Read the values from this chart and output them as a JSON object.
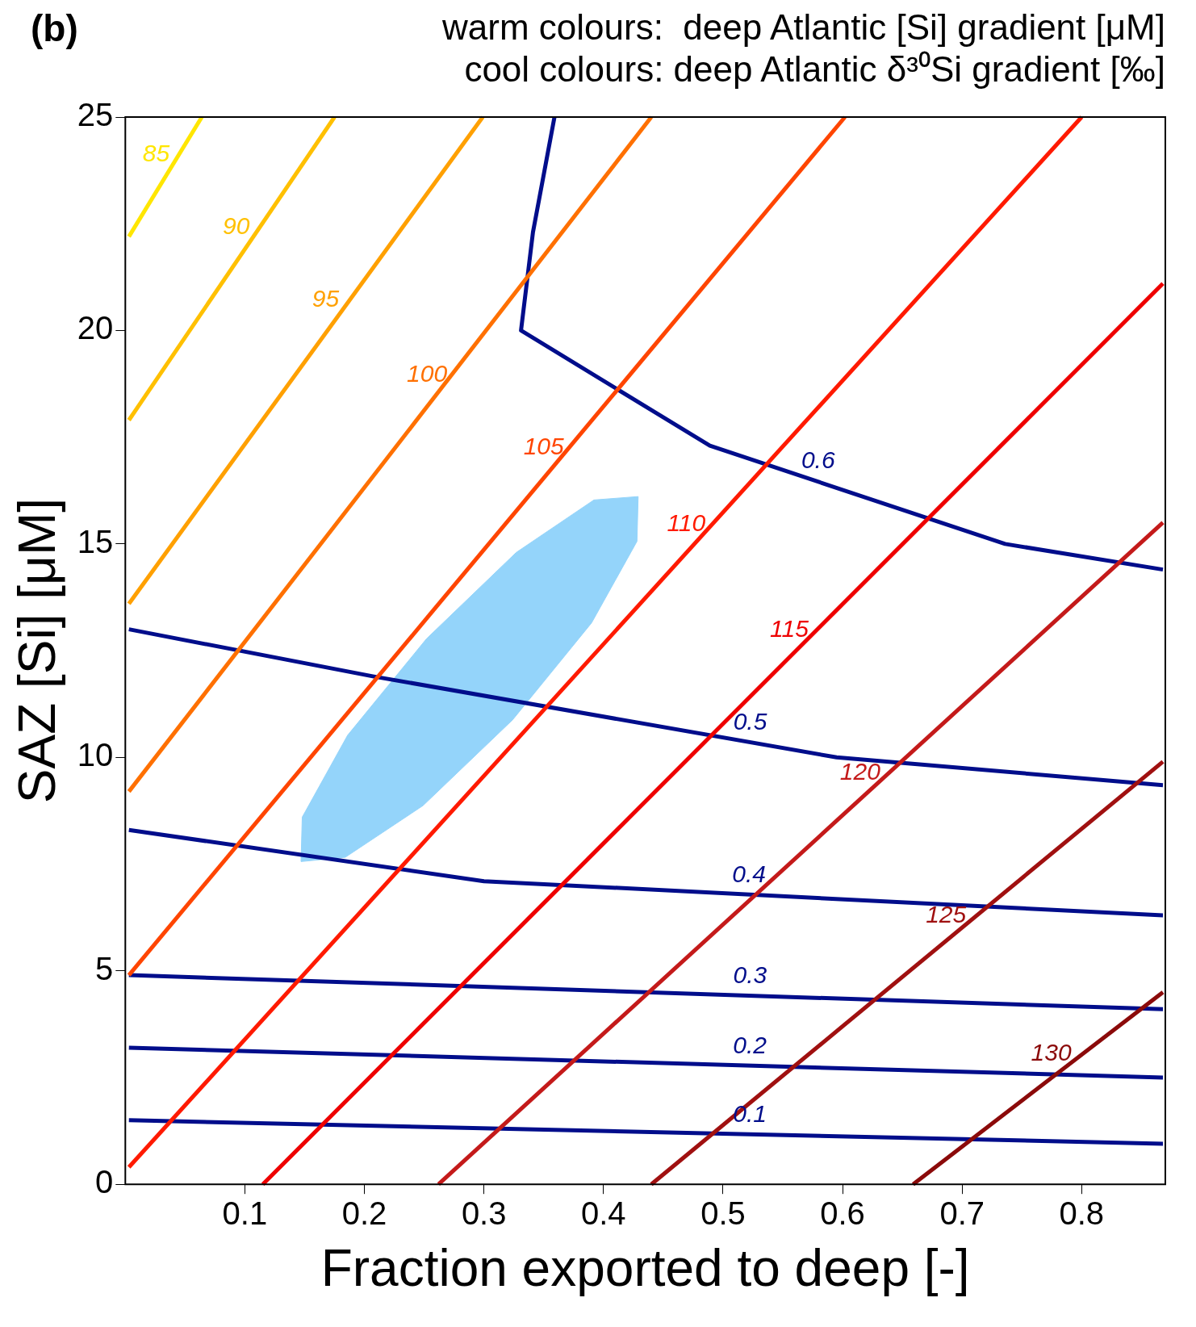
{
  "chart_data": {
    "type": "line",
    "title": "warm colours:  deep Atlantic [Si] gradient [μM]",
    "subtitle": "cool colours: deep Atlantic δ³⁰Si gradient [‰]",
    "xlabel": "Fraction exported to deep [-]",
    "ylabel": "SAZ [Si] [μM]",
    "annotations": [
      "(b)"
    ],
    "xlim": [
      0,
      0.87
    ],
    "ylim": [
      0,
      25
    ],
    "xticks": [
      0.1,
      0.2,
      0.3,
      0.4,
      0.5,
      0.6,
      0.7,
      0.8
    ],
    "yticks": [
      0,
      5,
      10,
      15,
      20,
      25
    ],
    "grid": false,
    "marker": "none",
    "line_style": "solid",
    "series": [
      {
        "type": "area",
        "color": "#94d4fa",
        "x": [
          0.429,
          0.428,
          0.39,
          0.324,
          0.249,
          0.184,
          0.147,
          0.148,
          0.186,
          0.252,
          0.327,
          0.392,
          0.429
        ],
        "values": [
          16.11,
          15.06,
          13.15,
          10.88,
          8.87,
          7.66,
          7.56,
          8.6,
          10.52,
          12.78,
          14.8,
          16.03,
          16.11
        ]
      },
      {
        "name": "85",
        "color": "#ffe600",
        "x": [
          0.003,
          0.064
        ],
        "values": [
          22.2,
          25
        ]
      },
      {
        "name": "90",
        "color": "#ffc000",
        "x": [
          0.003,
          0.175
        ],
        "values": [
          17.9,
          25
        ]
      },
      {
        "name": "95",
        "color": "#ffa000",
        "x": [
          0.003,
          0.299
        ],
        "values": [
          13.6,
          25
        ]
      },
      {
        "name": "100",
        "color": "#ff7000",
        "x": [
          0.003,
          0.44
        ],
        "values": [
          9.2,
          25
        ]
      },
      {
        "name": "105",
        "color": "#ff4500",
        "x": [
          0.003,
          0.602
        ],
        "values": [
          4.9,
          25
        ]
      },
      {
        "name": "110",
        "color": "#ff1a00",
        "x": [
          0.003,
          0.8
        ],
        "values": [
          0.4,
          25
        ]
      },
      {
        "name": "115",
        "color": "#ee0000",
        "x": [
          0.115,
          0.868
        ],
        "values": [
          0,
          21.1
        ]
      },
      {
        "name": "120",
        "color": "#c41a1a",
        "x": [
          0.262,
          0.868
        ],
        "values": [
          0,
          15.5
        ]
      },
      {
        "name": "125",
        "color": "#a01010",
        "x": [
          0.44,
          0.868
        ],
        "values": [
          0,
          9.9
        ]
      },
      {
        "name": "130",
        "color": "#8b0a0a",
        "x": [
          0.659,
          0.868
        ],
        "values": [
          0,
          4.5
        ]
      },
      {
        "name": "0.1",
        "color": "#000d8b",
        "x": [
          0.003,
          0.868
        ],
        "values": [
          1.5,
          0.95
        ]
      },
      {
        "name": "0.2",
        "color": "#000d8b",
        "x": [
          0.003,
          0.868
        ],
        "values": [
          3.2,
          2.5
        ]
      },
      {
        "name": "0.3",
        "color": "#000d8b",
        "x": [
          0.003,
          0.868
        ],
        "values": [
          4.9,
          4.1
        ]
      },
      {
        "name": "0.4",
        "color": "#000d8b",
        "x": [
          0.003,
          0.3,
          0.868
        ],
        "values": [
          8.3,
          7.1,
          6.3
        ]
      },
      {
        "name": "0.5",
        "color": "#000d8b",
        "x": [
          0.003,
          0.207,
          0.595,
          0.868
        ],
        "values": [
          13,
          11.9,
          10,
          9.35
        ]
      },
      {
        "name": "0.6",
        "color": "#000d8b",
        "x": [
          0.359,
          0.341,
          0.331,
          0.489,
          0.736,
          0.868
        ],
        "values": [
          25,
          22.3,
          20,
          17.3,
          15,
          14.4
        ]
      }
    ]
  }
}
